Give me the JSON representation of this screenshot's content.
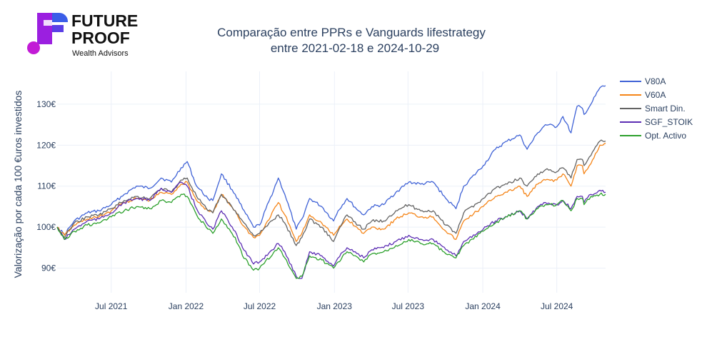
{
  "logo": {
    "line1": "FUTURE",
    "line2": "PROOF",
    "line3": "Wealth Advisors",
    "colors": {
      "purple": "#9b1fe0",
      "blue": "#3a5de8",
      "magenta": "#c21bd6"
    }
  },
  "chart_data": {
    "type": "line",
    "title_line1": "Comparação entre PPRs e Vanguards lifestrategy",
    "title_line2": "entre 2021-02-18 e 2024-10-29",
    "xlabel": "",
    "ylabel": "Valorização por cada 100 €uros investidos",
    "x_range": [
      "2021-02-18",
      "2024-10-29"
    ],
    "ylim": [
      84,
      138
    ],
    "x_ticks": [
      {
        "date": "2021-07-01",
        "label": "Jul 2021"
      },
      {
        "date": "2022-01-01",
        "label": "Jan 2022"
      },
      {
        "date": "2022-07-01",
        "label": "Jul 2022"
      },
      {
        "date": "2023-01-01",
        "label": "Jan 2023"
      },
      {
        "date": "2023-07-01",
        "label": "Jul 2023"
      },
      {
        "date": "2024-01-01",
        "label": "Jan 2024"
      },
      {
        "date": "2024-07-01",
        "label": "Jul 2024"
      }
    ],
    "y_ticks": [
      {
        "value": 90,
        "label": "90€"
      },
      {
        "value": 100,
        "label": "100€"
      },
      {
        "value": 110,
        "label": "110€"
      },
      {
        "value": 120,
        "label": "120€"
      },
      {
        "value": 130,
        "label": "130€"
      }
    ],
    "grid": true,
    "legend_position": "top-right",
    "x": [
      "2021-02-18",
      "2021-03-08",
      "2021-04-01",
      "2021-05-03",
      "2021-06-01",
      "2021-07-01",
      "2021-08-02",
      "2021-09-01",
      "2021-10-04",
      "2021-11-01",
      "2021-11-26",
      "2021-12-20",
      "2022-01-04",
      "2022-01-27",
      "2022-02-24",
      "2022-03-08",
      "2022-03-29",
      "2022-05-02",
      "2022-05-20",
      "2022-06-16",
      "2022-07-01",
      "2022-08-16",
      "2022-09-01",
      "2022-09-29",
      "2022-10-13",
      "2022-11-01",
      "2022-12-01",
      "2022-12-30",
      "2023-01-10",
      "2023-02-01",
      "2023-03-01",
      "2023-03-14",
      "2023-04-03",
      "2023-05-02",
      "2023-06-01",
      "2023-07-03",
      "2023-08-01",
      "2023-09-01",
      "2023-10-02",
      "2023-10-27",
      "2023-11-15",
      "2024-01-02",
      "2024-02-01",
      "2024-03-01",
      "2024-04-01",
      "2024-04-19",
      "2024-05-15",
      "2024-06-03",
      "2024-07-01",
      "2024-07-16",
      "2024-08-05",
      "2024-08-20",
      "2024-09-02",
      "2024-09-06",
      "2024-09-23",
      "2024-10-15",
      "2024-10-29"
    ],
    "series": [
      {
        "name": "V80A",
        "color": "#3f62d6",
        "values": [
          100,
          98.2,
          101.5,
          103.5,
          104,
          105.5,
          108,
          110,
          109.5,
          112,
          111,
          114.5,
          116,
          110,
          107,
          106.5,
          113,
          108,
          104.5,
          100,
          100.5,
          112,
          108,
          99.5,
          102,
          107,
          105,
          101.5,
          104,
          107,
          104,
          103,
          105,
          105.5,
          108.5,
          111,
          110.5,
          111,
          107,
          104.5,
          110,
          115,
          119,
          121,
          122.5,
          119,
          123,
          125,
          124.5,
          127,
          123,
          129.5,
          129,
          127.5,
          130,
          134,
          134.5
        ]
      },
      {
        "name": "V60A",
        "color": "#f58518",
        "values": [
          100,
          98,
          100.5,
          102,
          102.5,
          104,
          106,
          107,
          106.5,
          108.5,
          108,
          110.5,
          111,
          106.5,
          104,
          103.5,
          108,
          104,
          100.5,
          97.5,
          98,
          106,
          103,
          96.5,
          98.5,
          103,
          101,
          98,
          99.5,
          102,
          99.5,
          98.5,
          100,
          99.5,
          102,
          103.5,
          102.5,
          102.5,
          99,
          97,
          101.5,
          105,
          107.5,
          108.5,
          110,
          107.5,
          110.5,
          111.5,
          111.5,
          113,
          110,
          115,
          115,
          113,
          115.5,
          120,
          120.5
        ]
      },
      {
        "name": "Smart Din.",
        "color": "#636363",
        "values": [
          100,
          97.5,
          101,
          102.5,
          103,
          104.5,
          106.5,
          107.5,
          107,
          109.5,
          108.5,
          111.5,
          112,
          107.5,
          104,
          103.5,
          108,
          104,
          101.5,
          98,
          98.5,
          103,
          101,
          95.5,
          97.5,
          102,
          100,
          96.5,
          99,
          103,
          100.5,
          99.5,
          101.5,
          101.5,
          104,
          105.5,
          104,
          104,
          100.5,
          98.5,
          103.5,
          107,
          109.5,
          110.5,
          112,
          110,
          113,
          114,
          113.5,
          114.5,
          112,
          116.5,
          116.5,
          115,
          117.5,
          121,
          121
        ]
      },
      {
        "name": "SGF_STOIK",
        "color": "#5c2eb3",
        "values": [
          100,
          97,
          99.5,
          101.5,
          102,
          103.5,
          106,
          107,
          106.5,
          109.5,
          108.5,
          111,
          110,
          104.5,
          100.5,
          99.5,
          104,
          99,
          95,
          91,
          91.5,
          96,
          94,
          88,
          87.5,
          94,
          93,
          90.5,
          92.5,
          95,
          93.5,
          92.5,
          94.5,
          95,
          96.5,
          98,
          97,
          97,
          94.5,
          93,
          96.5,
          99.5,
          101.5,
          102.5,
          104,
          102,
          105,
          106,
          105.5,
          106.5,
          104.5,
          107.5,
          107.5,
          106,
          108,
          109,
          108.5
        ]
      },
      {
        "name": "Opt. Activo",
        "color": "#2ca02c",
        "values": [
          100,
          97,
          99,
          100.5,
          101,
          102.5,
          104,
          105,
          104.5,
          106.5,
          106,
          108,
          107.5,
          103,
          99.5,
          98.5,
          102,
          97.5,
          93,
          89.5,
          90,
          95,
          92.5,
          87.5,
          88,
          93,
          92,
          90,
          91.5,
          94,
          92.5,
          91.5,
          93.5,
          94,
          95.5,
          97,
          96,
          96,
          93.5,
          92.5,
          95.5,
          99,
          101,
          102.5,
          104,
          102,
          104.5,
          105.5,
          105.5,
          106.5,
          104,
          107,
          107,
          105.5,
          107.5,
          108,
          108
        ]
      }
    ]
  }
}
